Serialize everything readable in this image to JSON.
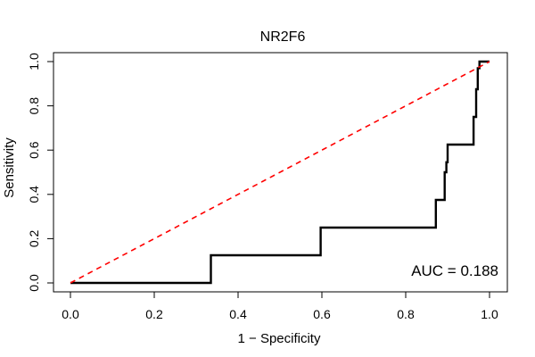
{
  "chart_data": {
    "type": "line",
    "title": "NR2F6",
    "xlabel": "1 − Specificity",
    "ylabel": "Sensitivity",
    "xlim": [
      0,
      1
    ],
    "ylim": [
      0,
      1
    ],
    "xticks": [
      "0.0",
      "0.2",
      "0.4",
      "0.6",
      "0.8",
      "1.0"
    ],
    "yticks": [
      "0.0",
      "0.2",
      "0.4",
      "0.6",
      "0.8",
      "1.0"
    ],
    "annotation": "AUC = 0.188",
    "grid": false,
    "series": [
      {
        "style": "solid",
        "color": "#000000",
        "x": [
          0.0,
          0.335,
          0.335,
          0.597,
          0.597,
          0.872,
          0.872,
          0.893,
          0.893,
          0.897,
          0.897,
          0.9,
          0.9,
          0.962,
          0.962,
          0.968,
          0.968,
          0.972,
          0.972,
          0.976,
          0.976,
          1.0
        ],
        "y": [
          0.0,
          0.0,
          0.125,
          0.125,
          0.25,
          0.25,
          0.375,
          0.375,
          0.5,
          0.5,
          0.545,
          0.545,
          0.625,
          0.625,
          0.75,
          0.75,
          0.875,
          0.875,
          0.97,
          0.97,
          1.0,
          1.0
        ]
      },
      {
        "style": "dashed",
        "color": "#ff0000",
        "x": [
          0,
          1
        ],
        "y": [
          0,
          1
        ]
      }
    ]
  }
}
